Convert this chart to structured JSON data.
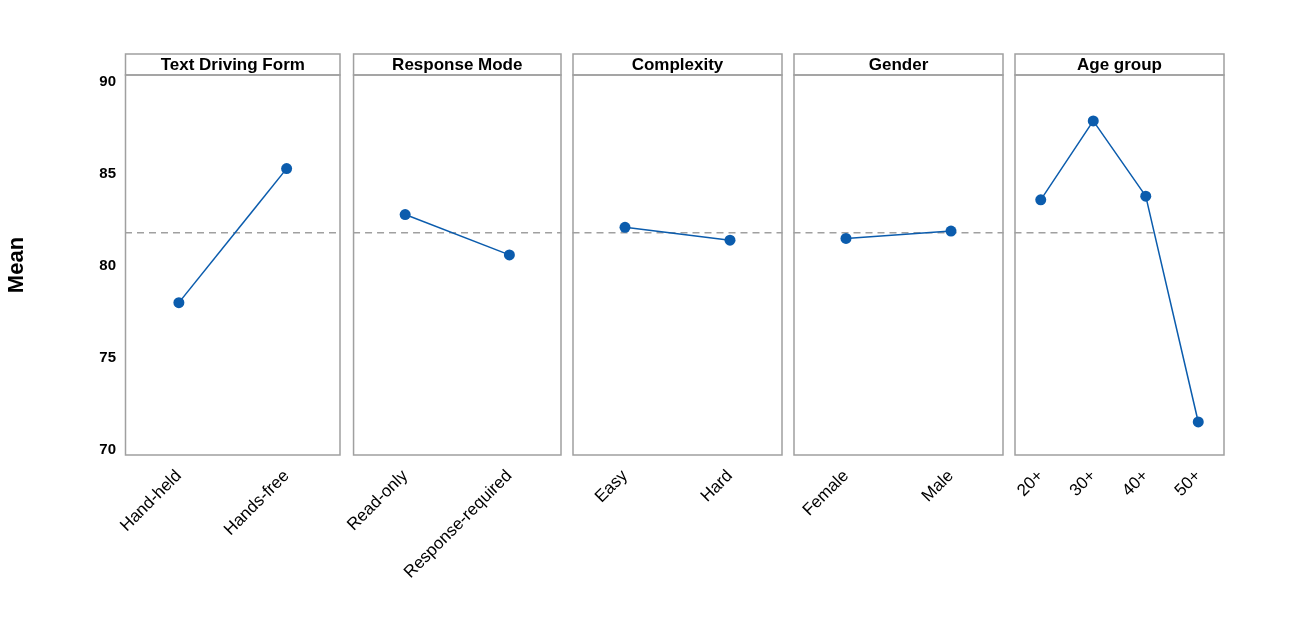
{
  "chart_data": [
    {
      "type": "line",
      "title": "Text Driving Form",
      "ylabel": "Mean",
      "categories": [
        "Hand-held",
        "Hands-free"
      ],
      "values": [
        78.0,
        85.3
      ],
      "color": "#0b5cad",
      "marker": "circle",
      "line_style": "solid",
      "ylim": [
        69.7,
        90.4
      ],
      "yticks": [
        70,
        75,
        80,
        85,
        90
      ],
      "ref_lines": [
        {
          "axis": "y",
          "value": 81.8,
          "color": "#a0a0a0",
          "line_style": "dashed"
        }
      ]
    },
    {
      "type": "line",
      "title": "Response Mode",
      "categories": [
        "Read-only",
        "Response-required"
      ],
      "values": [
        82.8,
        80.6
      ],
      "color": "#0b5cad",
      "marker": "circle",
      "line_style": "solid",
      "ylim": [
        69.7,
        90.4
      ],
      "tick_labels": "x",
      "ref_lines": [
        {
          "axis": "y",
          "value": 81.8,
          "color": "#a0a0a0",
          "line_style": "dashed"
        }
      ]
    },
    {
      "type": "line",
      "title": "Complexity",
      "categories": [
        "Easy",
        "Hard"
      ],
      "values": [
        82.1,
        81.4
      ],
      "color": "#0b5cad",
      "marker": "circle",
      "line_style": "solid",
      "ylim": [
        69.7,
        90.4
      ],
      "tick_labels": "x",
      "ref_lines": [
        {
          "axis": "y",
          "value": 81.8,
          "color": "#a0a0a0",
          "line_style": "dashed"
        }
      ]
    },
    {
      "type": "line",
      "title": "Gender",
      "categories": [
        "Female",
        "Male"
      ],
      "values": [
        81.5,
        81.9
      ],
      "color": "#0b5cad",
      "marker": "circle",
      "line_style": "solid",
      "ylim": [
        69.7,
        90.4
      ],
      "tick_labels": "x",
      "ref_lines": [
        {
          "axis": "y",
          "value": 81.8,
          "color": "#a0a0a0",
          "line_style": "dashed"
        }
      ]
    },
    {
      "type": "line",
      "title": "Age group",
      "categories": [
        "20+",
        "30+",
        "40+",
        "50+"
      ],
      "values": [
        83.6,
        87.9,
        83.8,
        71.5
      ],
      "color": "#0b5cad",
      "marker": "circle",
      "line_style": "solid",
      "ylim": [
        69.7,
        90.4
      ],
      "tick_labels": "x",
      "ref_lines": [
        {
          "axis": "y",
          "value": 81.8,
          "color": "#a0a0a0",
          "line_style": "dashed"
        }
      ]
    }
  ]
}
